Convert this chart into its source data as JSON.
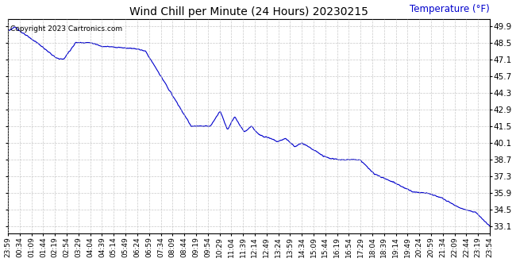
{
  "title": "Wind Chill per Minute (24 Hours) 20230215",
  "ylabel": "Temperature (°F)",
  "copyright_text": "Copyright 2023 Cartronics.com",
  "line_color": "#0000CC",
  "background_color": "#ffffff",
  "plot_bg_color": "#ffffff",
  "grid_color": "#bbbbbb",
  "title_color": "#000000",
  "ylabel_color": "#0000CC",
  "yticks": [
    33.1,
    34.5,
    35.9,
    37.3,
    38.7,
    40.1,
    41.5,
    42.9,
    44.3,
    45.7,
    47.1,
    48.5,
    49.9
  ],
  "ylim": [
    32.5,
    50.5
  ],
  "xtick_labels": [
    "23:59",
    "00:34",
    "01:09",
    "01:44",
    "02:19",
    "02:54",
    "03:29",
    "04:04",
    "04:39",
    "05:14",
    "05:49",
    "06:24",
    "06:59",
    "07:34",
    "08:09",
    "08:44",
    "09:19",
    "09:54",
    "10:29",
    "11:04",
    "11:39",
    "12:14",
    "12:49",
    "13:24",
    "13:59",
    "14:34",
    "15:09",
    "15:44",
    "16:19",
    "16:54",
    "17:29",
    "18:04",
    "18:39",
    "19:14",
    "19:49",
    "20:24",
    "20:59",
    "21:34",
    "22:09",
    "22:44",
    "23:19",
    "23:54"
  ],
  "num_points": 1440
}
